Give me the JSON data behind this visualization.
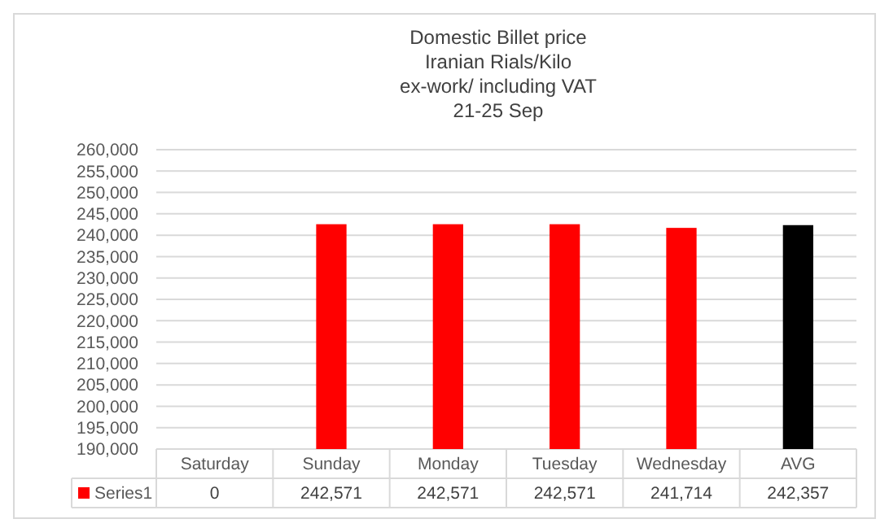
{
  "chart_data": {
    "type": "bar",
    "title": "Domestic Billet price\nIranian Rials/Kilo\nex-work/ including VAT\n21-25 Sep",
    "categories": [
      "Saturday",
      "Sunday",
      "Monday",
      "Tuesday",
      "Wednesday",
      "AVG"
    ],
    "series": [
      {
        "name": "Series1",
        "colors": [
          "#ff0000",
          "#ff0000",
          "#ff0000",
          "#ff0000",
          "#ff0000",
          "#000000"
        ],
        "values": [
          null,
          242571,
          242571,
          242571,
          241714,
          242357
        ],
        "value_labels": [
          "0",
          "242,571",
          "242,571",
          "242,571",
          "241,714",
          "242,357"
        ]
      }
    ],
    "ylim": [
      190000,
      260000
    ],
    "yticks": [
      {
        "value": 190000,
        "label": "190,000"
      },
      {
        "value": 195000,
        "label": "195,000"
      },
      {
        "value": 200000,
        "label": "200,000"
      },
      {
        "value": 205000,
        "label": "205,000"
      },
      {
        "value": 210000,
        "label": "210,000"
      },
      {
        "value": 215000,
        "label": "215,000"
      },
      {
        "value": 220000,
        "label": "220,000"
      },
      {
        "value": 225000,
        "label": "225,000"
      },
      {
        "value": 230000,
        "label": "230,000"
      },
      {
        "value": 235000,
        "label": "235,000"
      },
      {
        "value": 240000,
        "label": "240,000"
      },
      {
        "value": 245000,
        "label": "245,000"
      },
      {
        "value": 250000,
        "label": "250,000"
      },
      {
        "value": 255000,
        "label": "255,000"
      },
      {
        "value": 260000,
        "label": "260,000"
      }
    ],
    "grid": "y",
    "legend": "bottom"
  }
}
